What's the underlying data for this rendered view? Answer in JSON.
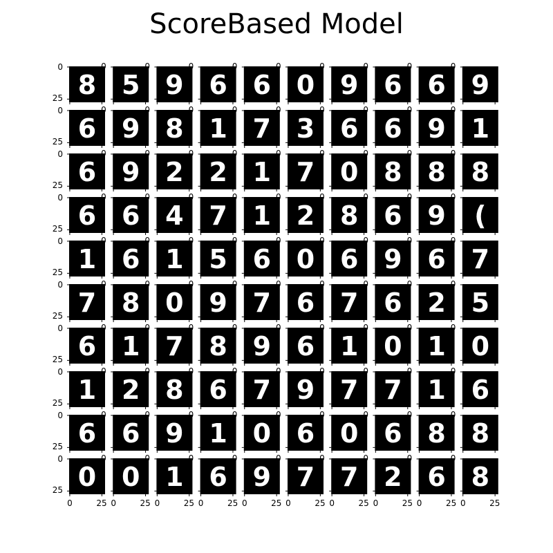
{
  "figure": {
    "title": "ScoreBased Model",
    "rows": 10,
    "cols": 10,
    "tick_labels": [
      "0",
      "25"
    ],
    "digits": [
      [
        "8",
        "5",
        "9",
        "6",
        "6",
        "0",
        "9",
        "6",
        "6",
        "9"
      ],
      [
        "6",
        "9",
        "8",
        "1",
        "7",
        "3",
        "6",
        "6",
        "9",
        "1"
      ],
      [
        "6",
        "9",
        "2",
        "2",
        "1",
        "7",
        "0",
        "8",
        "8",
        "8"
      ],
      [
        "6",
        "6",
        "4",
        "7",
        "1",
        "2",
        "8",
        "6",
        "9",
        "("
      ],
      [
        "1",
        "6",
        "1",
        "5",
        "6",
        "0",
        "6",
        "9",
        "6",
        "7"
      ],
      [
        "7",
        "8",
        "0",
        "9",
        "7",
        "6",
        "7",
        "6",
        "2",
        "5"
      ],
      [
        "6",
        "1",
        "7",
        "8",
        "9",
        "6",
        "1",
        "0",
        "1",
        "0"
      ],
      [
        "1",
        "2",
        "8",
        "6",
        "7",
        "9",
        "7",
        "7",
        "1",
        "6"
      ],
      [
        "6",
        "6",
        "9",
        "1",
        "0",
        "6",
        "0",
        "6",
        "8",
        "8"
      ],
      [
        "0",
        "0",
        "1",
        "6",
        "9",
        "7",
        "7",
        "2",
        "6",
        "8"
      ]
    ]
  }
}
